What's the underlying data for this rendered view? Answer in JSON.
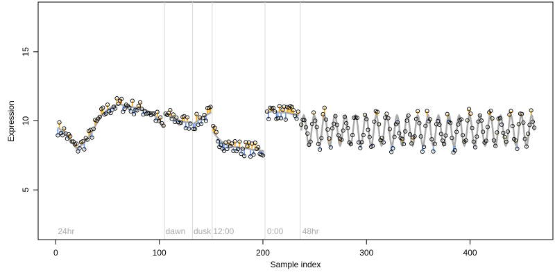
{
  "chart_data": {
    "type": "scatter",
    "title": "",
    "xlabel": "Sample index",
    "ylabel": "Expression",
    "xlim": [
      -17,
      480
    ],
    "ylim": [
      1.4,
      18.6
    ],
    "x_ticks": [
      0,
      100,
      200,
      300,
      400
    ],
    "x_tick_labels": [
      "0",
      "100",
      "200",
      "300",
      "400"
    ],
    "y_ticks": [
      5,
      10,
      15
    ],
    "y_tick_labels": [
      "5",
      "10",
      "15"
    ],
    "grid": false,
    "legend": "none",
    "segment_boundaries": [
      105,
      132,
      151,
      202,
      236
    ],
    "segment_labels": [
      {
        "text": "24hr",
        "x": 2
      },
      {
        "text": "dawn",
        "x": 106
      },
      {
        "text": "dusk",
        "x": 133
      },
      {
        "text": "12:00",
        "x": 152
      },
      {
        "text": "0:00",
        "x": 204
      },
      {
        "text": "48hr",
        "x": 238
      }
    ],
    "colors": {
      "fit_line": "#aaaaaa",
      "residual_above": "#ffa500",
      "residual_below": "#6495ed",
      "point_outline": "#000000",
      "boundary_line": "#d8d8d8",
      "segment_label": "#aaaaaa"
    },
    "fit_segments": [
      {
        "x": [
          2,
          8,
          14,
          20,
          26,
          32,
          38,
          44,
          50,
          56,
          62,
          68,
          74,
          80,
          86,
          92,
          98,
          104
        ],
        "y": [
          9.5,
          9.2,
          8.6,
          8.0,
          8.3,
          8.8,
          9.6,
          10.4,
          10.8,
          11.1,
          11.2,
          11.1,
          11.0,
          10.9,
          10.8,
          10.6,
          10.2,
          9.5
        ]
      },
      {
        "x": [
          106,
          110,
          115,
          120,
          125,
          131
        ],
        "y": [
          10.5,
          10.3,
          10.2,
          10.0,
          9.9,
          9.9
        ]
      },
      {
        "x": [
          133,
          137,
          141,
          145,
          150
        ],
        "y": [
          9.8,
          10.0,
          10.2,
          10.4,
          10.6
        ]
      },
      {
        "x": [
          152,
          156,
          160,
          164,
          168,
          172,
          176,
          180,
          185,
          190,
          195,
          201
        ],
        "y": [
          9.2,
          8.8,
          8.5,
          8.3,
          8.2,
          8.1,
          8.1,
          8.0,
          8.0,
          7.9,
          7.9,
          7.8
        ]
      },
      {
        "x": [
          204,
          210,
          216,
          222,
          228,
          235
        ],
        "y": [
          10.6,
          10.7,
          10.6,
          10.6,
          10.5,
          10.4
        ]
      }
    ],
    "oscillation": {
      "x_start": 237,
      "x_end": 462,
      "step": 1,
      "mean": 9.3,
      "amplitude": 1.1,
      "period": 10,
      "phase": 237
    },
    "points": {
      "seed": 7,
      "noise": 0.55,
      "x_step": 1.5
    }
  }
}
